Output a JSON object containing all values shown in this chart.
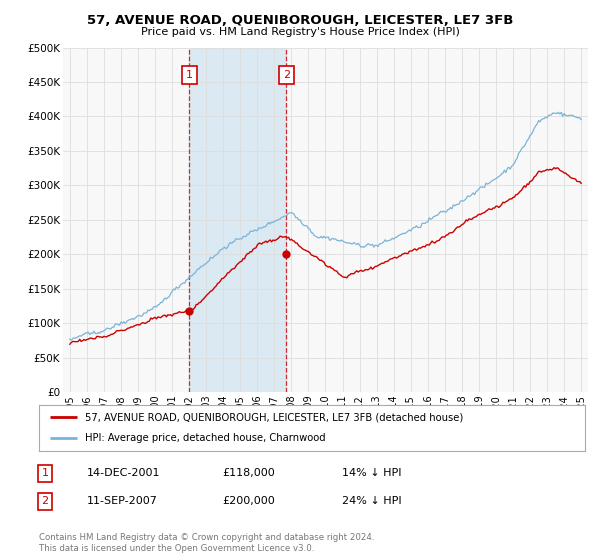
{
  "title": "57, AVENUE ROAD, QUENIBOROUGH, LEICESTER, LE7 3FB",
  "subtitle": "Price paid vs. HM Land Registry's House Price Index (HPI)",
  "hpi_color": "#7ab4d8",
  "price_color": "#cc0000",
  "annotation_color": "#cc0000",
  "background_color": "#ffffff",
  "plot_bg_color": "#f8f8f8",
  "grid_color": "#dddddd",
  "span_color": "#d0e4f0",
  "ylim": [
    0,
    500000
  ],
  "yticks": [
    0,
    50000,
    100000,
    150000,
    200000,
    250000,
    300000,
    350000,
    400000,
    450000,
    500000
  ],
  "ytick_labels": [
    "£0",
    "£50K",
    "£100K",
    "£150K",
    "£200K",
    "£250K",
    "£300K",
    "£350K",
    "£400K",
    "£450K",
    "£500K"
  ],
  "legend_label_price": "57, AVENUE ROAD, QUENIBOROUGH, LEICESTER, LE7 3FB (detached house)",
  "legend_label_hpi": "HPI: Average price, detached house, Charnwood",
  "annotation1_date": "14-DEC-2001",
  "annotation1_price": "£118,000",
  "annotation1_pct": "14% ↓ HPI",
  "annotation2_date": "11-SEP-2007",
  "annotation2_price": "£200,000",
  "annotation2_pct": "24% ↓ HPI",
  "footer": "Contains HM Land Registry data © Crown copyright and database right 2024.\nThis data is licensed under the Open Government Licence v3.0.",
  "sale1_x": 2002.0,
  "sale1_y": 118000,
  "sale2_x": 2007.7,
  "sale2_y": 200000,
  "xlim_left": 1994.6,
  "xlim_right": 2025.4
}
